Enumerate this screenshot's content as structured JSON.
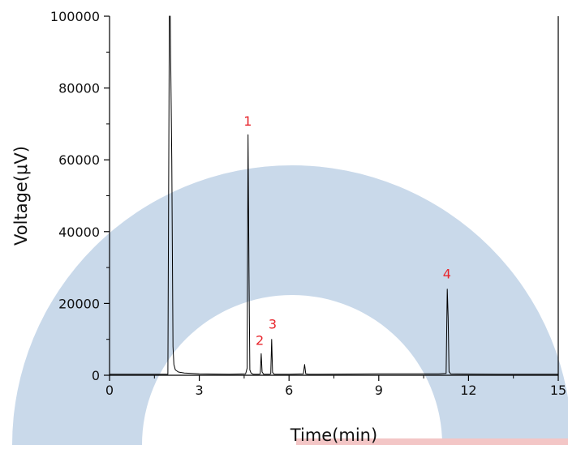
{
  "chart_data": {
    "type": "line",
    "title": "",
    "xlabel": "Time(min)",
    "ylabel": "Voltage(μV)",
    "xlim": [
      0,
      15
    ],
    "ylim": [
      0,
      100000
    ],
    "x_ticks": [
      0,
      3,
      6,
      9,
      12,
      15
    ],
    "x_tick_labels": [
      "0",
      "3",
      "6",
      "9",
      "12",
      "15"
    ],
    "y_ticks": [
      0,
      20000,
      40000,
      60000,
      80000,
      100000
    ],
    "y_tick_labels": [
      "0",
      "20000",
      "40000",
      "60000",
      "80000",
      "100000"
    ],
    "grid": false,
    "legend": "none",
    "line_color": "#000000",
    "peak_label_color": "#e8262d",
    "watermark_colors": [
      "#c9d9ea",
      "#f3c6c6"
    ],
    "series": [
      {
        "x": [
          0,
          1.95,
          2.0,
          2.03,
          2.08,
          2.12,
          2.15,
          2.2,
          2.3,
          2.5,
          3.0,
          4.0,
          4.55,
          4.6,
          4.63,
          4.66,
          4.69,
          4.73,
          4.8,
          5.0,
          5.04,
          5.07,
          5.1,
          5.15,
          5.35,
          5.39,
          5.42,
          5.45,
          5.5,
          6.0,
          6.48,
          6.52,
          6.56,
          6.65,
          7.0,
          9.0,
          11.0,
          11.25,
          11.29,
          11.32,
          11.35,
          11.4,
          11.6,
          13.0,
          15.0
        ],
        "y": [
          300,
          300,
          100000,
          100000,
          60000,
          8000,
          3000,
          1500,
          900,
          600,
          400,
          300,
          400,
          2000,
          67000,
          30000,
          1500,
          600,
          300,
          300,
          400,
          6000,
          900,
          300,
          300,
          400,
          10000,
          800,
          300,
          300,
          400,
          3000,
          400,
          300,
          300,
          400,
          400,
          500,
          24000,
          16000,
          1000,
          400,
          350,
          300,
          300
        ]
      }
    ],
    "annotations": [
      {
        "text": "1",
        "x": 4.62,
        "y": 69500
      },
      {
        "text": "2",
        "x": 5.02,
        "y": 8500
      },
      {
        "text": "3",
        "x": 5.45,
        "y": 13000
      },
      {
        "text": "4",
        "x": 11.28,
        "y": 27000
      }
    ]
  }
}
